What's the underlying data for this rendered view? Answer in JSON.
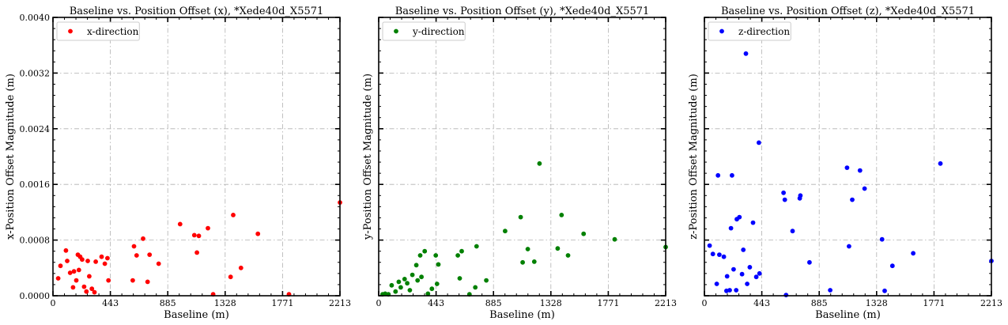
{
  "chart_data": [
    {
      "type": "scatter",
      "title": "Baseline vs. Position Offset (x), *Xede40d_X5571",
      "xlabel": "Baseline (m)",
      "ylabel": "x-Position Offset Magnitude (m)",
      "xlim": [
        0,
        2213
      ],
      "ylim": [
        0,
        0.004
      ],
      "xticks": [
        "0",
        "443",
        "885",
        "1328",
        "1771",
        "2213"
      ],
      "yticks": [
        "0.0000",
        "0.0008",
        "0.0016",
        "0.0024",
        "0.0032",
        "0.0040"
      ],
      "show_ytick_labels": true,
      "grid": true,
      "legend_position": "top-left",
      "series": [
        {
          "name": "x-direction",
          "color": "#ff0000",
          "points": [
            [
              40,
              0.00025
            ],
            [
              58,
              0.00043
            ],
            [
              100,
              0.00065
            ],
            [
              110,
              0.0005
            ],
            [
              132,
              0.00033
            ],
            [
              155,
              0.00012
            ],
            [
              162,
              0.00035
            ],
            [
              180,
              0.00022
            ],
            [
              192,
              0.00059
            ],
            [
              200,
              0.00037
            ],
            [
              210,
              0.00056
            ],
            [
              225,
              0.00052
            ],
            [
              240,
              0.00013
            ],
            [
              258,
              6e-05
            ],
            [
              268,
              0.0005
            ],
            [
              280,
              0.00028
            ],
            [
              300,
              0.0001
            ],
            [
              320,
              5e-05
            ],
            [
              330,
              0.00049
            ],
            [
              375,
              0.00056
            ],
            [
              400,
              0.00046
            ],
            [
              420,
              0.00054
            ],
            [
              428,
              0.00022
            ],
            [
              615,
              0.00022
            ],
            [
              625,
              0.00071
            ],
            [
              645,
              0.00058
            ],
            [
              695,
              0.00082
            ],
            [
              730,
              0.0002
            ],
            [
              745,
              0.00059
            ],
            [
              815,
              0.00046
            ],
            [
              980,
              0.00103
            ],
            [
              1090,
              0.00087
            ],
            [
              1110,
              0.00062
            ],
            [
              1125,
              0.00086
            ],
            [
              1195,
              0.00097
            ],
            [
              1235,
              2e-05
            ],
            [
              1370,
              0.00027
            ],
            [
              1390,
              0.00116
            ],
            [
              1450,
              0.0004
            ],
            [
              1580,
              0.00089
            ],
            [
              1820,
              2e-05
            ],
            [
              2213,
              0.00134
            ]
          ]
        }
      ]
    },
    {
      "type": "scatter",
      "title": "Baseline vs. Position Offset (y), *Xede40d_X5571",
      "xlabel": "Baseline (m)",
      "ylabel": "y-Position Offset Magnitude (m)",
      "xlim": [
        0,
        2213
      ],
      "ylim": [
        0,
        0.004
      ],
      "xticks": [
        "0",
        "443",
        "885",
        "1328",
        "1771",
        "2213"
      ],
      "yticks": [],
      "show_ytick_labels": false,
      "grid": true,
      "legend_position": "top-left",
      "series": [
        {
          "name": "y-direction",
          "color": "#008000",
          "points": [
            [
              30,
              2e-05
            ],
            [
              50,
              3e-05
            ],
            [
              75,
              2e-05
            ],
            [
              100,
              0.00015
            ],
            [
              130,
              6e-05
            ],
            [
              155,
              0.0002
            ],
            [
              170,
              0.00012
            ],
            [
              200,
              0.00024
            ],
            [
              220,
              0.00018
            ],
            [
              240,
              8e-05
            ],
            [
              260,
              0.0003
            ],
            [
              290,
              0.00044
            ],
            [
              300,
              0.00022
            ],
            [
              320,
              0.00058
            ],
            [
              330,
              0.00027
            ],
            [
              355,
              0.00064
            ],
            [
              380,
              3e-05
            ],
            [
              410,
              0.0001
            ],
            [
              440,
              0.00058
            ],
            [
              450,
              0.00017
            ],
            [
              460,
              0.00045
            ],
            [
              610,
              0.00058
            ],
            [
              625,
              0.00025
            ],
            [
              640,
              0.00064
            ],
            [
              700,
              2e-05
            ],
            [
              745,
              0.00012
            ],
            [
              755,
              0.00071
            ],
            [
              830,
              0.00022
            ],
            [
              975,
              0.00093
            ],
            [
              1095,
              0.00113
            ],
            [
              1110,
              0.00048
            ],
            [
              1150,
              0.00067
            ],
            [
              1200,
              0.00049
            ],
            [
              1240,
              0.0019
            ],
            [
              1380,
              0.00068
            ],
            [
              1410,
              0.00116
            ],
            [
              1460,
              0.00058
            ],
            [
              1580,
              0.00089
            ],
            [
              1820,
              0.00081
            ],
            [
              2213,
              0.0007
            ]
          ]
        }
      ]
    },
    {
      "type": "scatter",
      "title": "Baseline vs. Position Offset (z), *Xede40d_X5571",
      "xlabel": "Baseline (m)",
      "ylabel": "z-Position Offset Magnitude (m)",
      "xlim": [
        0,
        2213
      ],
      "ylim": [
        0,
        0.004
      ],
      "xticks": [
        "0",
        "443",
        "885",
        "1328",
        "1771",
        "2213"
      ],
      "yticks": [],
      "show_ytick_labels": false,
      "grid": true,
      "legend_position": "top-left",
      "series": [
        {
          "name": "z-direction",
          "color": "#0000ff",
          "points": [
            [
              40,
              0.00072
            ],
            [
              65,
              0.0006
            ],
            [
              95,
              0.00017
            ],
            [
              105,
              0.00173
            ],
            [
              115,
              0.00059
            ],
            [
              150,
              0.00056
            ],
            [
              170,
              7e-05
            ],
            [
              175,
              0.00028
            ],
            [
              195,
              8e-05
            ],
            [
              205,
              0.00097
            ],
            [
              213,
              0.00173
            ],
            [
              225,
              0.00038
            ],
            [
              245,
              8e-05
            ],
            [
              250,
              0.0011
            ],
            [
              270,
              0.00113
            ],
            [
              290,
              0.00031
            ],
            [
              300,
              0.00066
            ],
            [
              320,
              0.00348
            ],
            [
              330,
              0.00017
            ],
            [
              350,
              0.00041
            ],
            [
              375,
              0.00105
            ],
            [
              400,
              0.00027
            ],
            [
              420,
              0.0022
            ],
            [
              425,
              0.00032
            ],
            [
              610,
              0.00148
            ],
            [
              620,
              0.00138
            ],
            [
              630,
              1e-05
            ],
            [
              680,
              0.00093
            ],
            [
              735,
              0.0014
            ],
            [
              740,
              0.00144
            ],
            [
              810,
              0.00048
            ],
            [
              970,
              8e-05
            ],
            [
              1100,
              0.00184
            ],
            [
              1115,
              0.00071
            ],
            [
              1140,
              0.00138
            ],
            [
              1200,
              0.0018
            ],
            [
              1235,
              0.00154
            ],
            [
              1370,
              0.00081
            ],
            [
              1390,
              7e-05
            ],
            [
              1450,
              0.00043
            ],
            [
              1610,
              0.00061
            ],
            [
              1820,
              0.0019
            ],
            [
              2213,
              0.0005
            ]
          ]
        }
      ]
    }
  ]
}
